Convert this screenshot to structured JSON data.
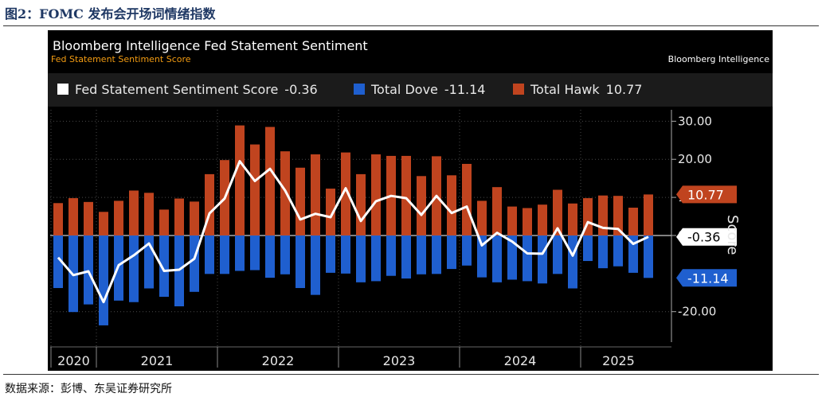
{
  "figure": {
    "title": "图2：FOMC 发布会开场词情绪指数",
    "source": "数据来源：彭博、东吴证券研究所"
  },
  "bloomberg": {
    "title": "Bloomberg Intelligence Fed Statement Sentiment",
    "subtitle": "Fed Statement Sentiment Score",
    "brand": "Bloomberg Intelligence"
  },
  "colors": {
    "background": "#000000",
    "hawk": "#c0441f",
    "dove": "#1f5fcf",
    "score": "#ffffff",
    "axis_text": "#e8e8e8"
  },
  "legend": [
    {
      "label": "Fed Statement Sentiment Score",
      "value": "-0.36",
      "color": "#ffffff"
    },
    {
      "label": "Total Dove",
      "value": "-11.14",
      "color": "#1f5fcf"
    },
    {
      "label": "Total Hawk",
      "value": "10.77",
      "color": "#c0441f"
    }
  ],
  "chart_data": {
    "type": "bar",
    "title": "Bloomberg Intelligence Fed Statement Sentiment",
    "ylabel": "Score",
    "ylim": [
      -28,
      33
    ],
    "yticks": [
      "30.00",
      "20.00",
      "10.00",
      "0.00",
      "-20.00"
    ],
    "ytick_values": [
      30,
      20,
      10,
      0,
      -20
    ],
    "year_labels": [
      "2020",
      "2021",
      "2022",
      "2023",
      "2024",
      "2025"
    ],
    "year_starts": [
      0,
      3,
      11,
      19,
      27,
      35
    ],
    "series": [
      {
        "name": "Total Hawk",
        "kind": "bar",
        "values": [
          8.5,
          9.8,
          8.8,
          6.2,
          9.1,
          11.8,
          11.2,
          6.8,
          9.7,
          8.9,
          16.1,
          19.8,
          28.9,
          23.9,
          28.5,
          22.1,
          17.8,
          21.3,
          12.3,
          21.8,
          16.1,
          21.3,
          20.9,
          20.9,
          15.6,
          20.8,
          15.8,
          18.8,
          9.1,
          12.7,
          7.6,
          7.2,
          8.1,
          12.0,
          8.4,
          9.8,
          10.5,
          10.4,
          7.3,
          10.77
        ]
      },
      {
        "name": "Total Dove",
        "kind": "bar",
        "values": [
          -13.8,
          -20.1,
          -18.1,
          -23.6,
          -17.1,
          -17.5,
          -13.9,
          -16.1,
          -18.6,
          -14.8,
          -10.1,
          -10.1,
          -9.3,
          -9.1,
          -11.1,
          -10.2,
          -13.8,
          -15.6,
          -9.8,
          -10.0,
          -12.3,
          -12.0,
          -10.6,
          -11.3,
          -10.2,
          -10.1,
          -8.8,
          -7.9,
          -11.0,
          -12.3,
          -11.6,
          -12.0,
          -12.6,
          -10.1,
          -13.9,
          -6.7,
          -8.6,
          -8.1,
          -9.8,
          -11.14
        ]
      },
      {
        "name": "Fed Statement Sentiment Score",
        "kind": "line",
        "values": [
          -5.8,
          -10.4,
          -9.4,
          -17.5,
          -7.8,
          -5.2,
          -2.1,
          -9.3,
          -9.0,
          -6.1,
          5.8,
          9.7,
          19.5,
          14.3,
          17.5,
          11.8,
          4.2,
          5.7,
          4.8,
          12.4,
          3.8,
          9.0,
          10.4,
          9.8,
          5.4,
          10.4,
          5.9,
          7.6,
          -2.6,
          0.7,
          -1.6,
          -4.7,
          -4.8,
          1.9,
          -5.3,
          3.5,
          2.0,
          1.7,
          -2.2,
          -0.36
        ]
      }
    ],
    "end_labels": [
      {
        "text": "10.77",
        "value": 10.77,
        "bg": "#c0441f",
        "fg": "#ffffff"
      },
      {
        "text": "-0.36",
        "value": -0.36,
        "bg": "#ffffff",
        "fg": "#000000"
      },
      {
        "text": "-11.14",
        "value": -11.14,
        "bg": "#1f5fcf",
        "fg": "#ffffff"
      }
    ]
  }
}
